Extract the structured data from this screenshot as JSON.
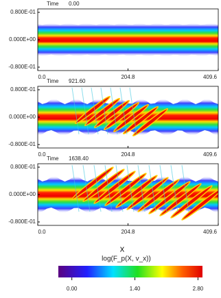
{
  "chart_data": {
    "type": "phase-space",
    "x_label": "x",
    "xlim": [
      0,
      409.6
    ],
    "xticks": [
      {
        "value": 0,
        "label": "0.0"
      },
      204.8,
      409.6
    ],
    "ylim": [
      -0.09,
      0.09
    ],
    "yticks": [
      {
        "value": 0.08,
        "label": "0.800E-01"
      },
      {
        "value": 0,
        "label": "0.000E+00"
      },
      {
        "value": -0.08,
        "label": "-0.800E-01"
      }
    ],
    "panels": [
      {
        "time_label": "Time",
        "time": {
          "value": 0,
          "label": "0.00"
        }
      },
      {
        "time_label": "Time",
        "time": {
          "value": 921.6,
          "label": "921.60"
        }
      },
      {
        "time_label": "Time",
        "time": {
          "value": 1638.4,
          "label": "1638.40"
        }
      }
    ],
    "colorbar": {
      "label": "log(F_p(X, v_x))",
      "lim": [
        -0.3,
        2.9
      ],
      "ticks": [
        {
          "value": 0,
          "label": "0.00"
        },
        {
          "value": 1.4,
          "label": "1.40"
        },
        {
          "value": 2.8,
          "label": "2.80"
        }
      ]
    }
  }
}
